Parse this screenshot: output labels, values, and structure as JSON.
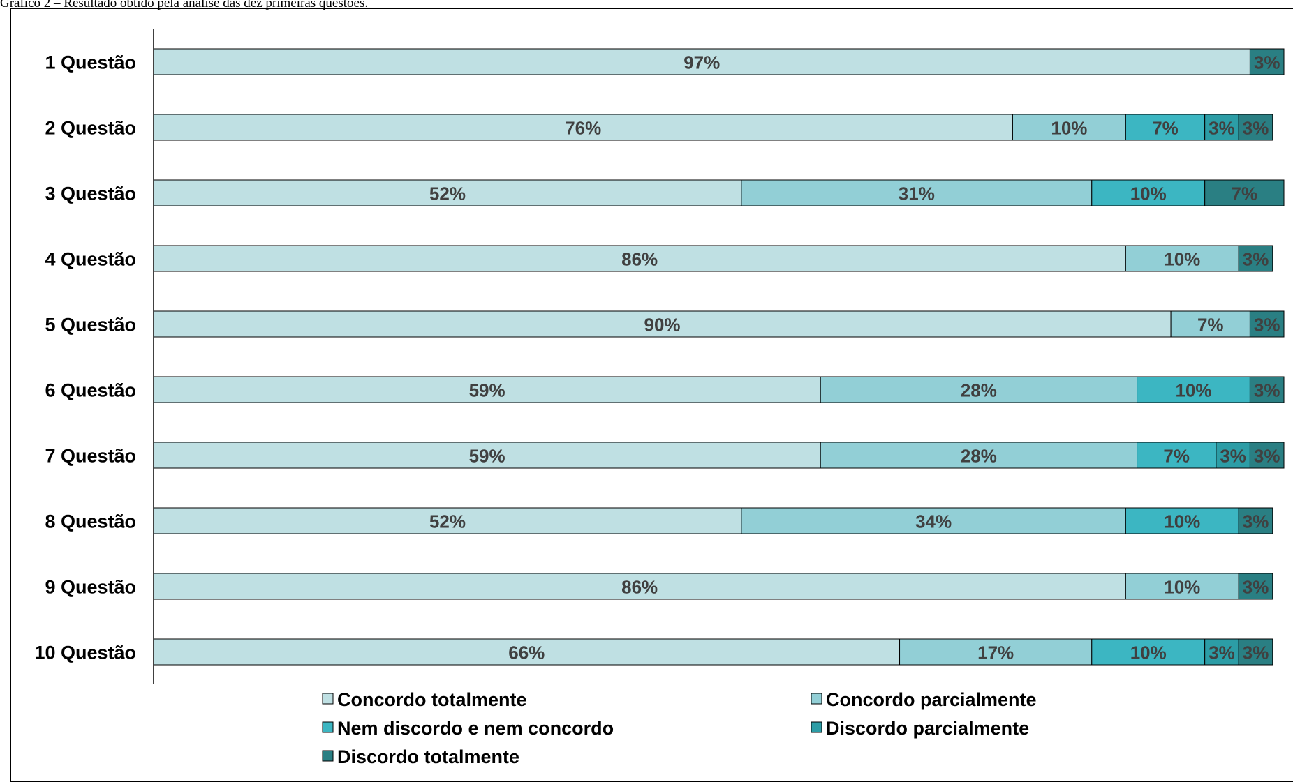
{
  "caption": "Gráfico 2 – Resultado obtido pela análise das dez primeiras questões.",
  "chart_data": {
    "type": "bar",
    "orientation": "horizontal",
    "stacked": true,
    "categories": [
      "1 Questão",
      "2 Questão",
      "3 Questão",
      "4 Questão",
      "5 Questão",
      "6 Questão",
      "7 Questão",
      "8 Questão",
      "9 Questão",
      "10 Questão"
    ],
    "series": [
      {
        "name": "Concordo totalmente",
        "color": "#bfe0e3",
        "values": [
          97,
          76,
          52,
          86,
          90,
          59,
          59,
          52,
          86,
          66
        ],
        "labels": [
          "97%",
          "76%",
          "52%",
          "86%",
          "90%",
          "59%",
          "59%",
          "52%",
          "86%",
          "66%"
        ]
      },
      {
        "name": "Concordo parcialmente",
        "color": "#92cfd6",
        "values": [
          0,
          10,
          31,
          10,
          7,
          28,
          28,
          34,
          10,
          17
        ],
        "labels": [
          "",
          "10%",
          "31%",
          "10%",
          "7%",
          "28%",
          "28%",
          "34%",
          "10%",
          "17%"
        ]
      },
      {
        "name": "Nem discordo e nem concordo",
        "color": "#3cb6c2",
        "values": [
          0,
          7,
          10,
          0,
          0,
          10,
          7,
          10,
          0,
          10
        ],
        "labels": [
          "",
          "7%",
          "10%",
          "",
          "",
          "10%",
          "7%",
          "10%",
          "",
          "10%"
        ]
      },
      {
        "name": "Discordo parcialmente",
        "color": "#2c9da6",
        "values": [
          0,
          3,
          0,
          0,
          0,
          0,
          3,
          0,
          0,
          3
        ],
        "labels": [
          "",
          "3%",
          "",
          "",
          "",
          "",
          "3%",
          "",
          "",
          "3%"
        ]
      },
      {
        "name": "Discordo totalmente",
        "color": "#2a7f83",
        "values": [
          3,
          3,
          7,
          3,
          3,
          3,
          3,
          3,
          3,
          3
        ],
        "labels": [
          "3%",
          "3%",
          "7%",
          "3%",
          "3%",
          "3%",
          "3%",
          "3%",
          "3%",
          "3%"
        ]
      }
    ],
    "xlim": [
      0,
      100
    ],
    "grid": false,
    "legend": "bottom"
  }
}
